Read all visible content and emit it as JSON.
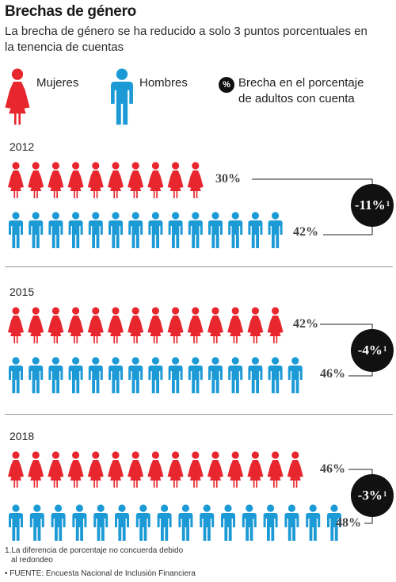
{
  "title": "Brechas de género",
  "subtitle": "La brecha de género se ha reducido a solo 3 puntos porcentuales en la tenencia de cuentas",
  "legend": {
    "women": "Mujeres",
    "men": "Hombres",
    "gap_symbol": "%",
    "gap_label_line1": "Brecha en el porcentaje",
    "gap_label_line2": "de adultos con cuenta"
  },
  "colors": {
    "women": "#e8262d",
    "men": "#1c9ad6",
    "badge": "#111111"
  },
  "icon_names": {
    "women": "woman-icon",
    "men": "man-icon"
  },
  "chart_data": {
    "type": "pictogram",
    "categories": [
      "2012",
      "2015",
      "2018"
    ],
    "series": [
      {
        "name": "Mujeres",
        "values": [
          30,
          42,
          46
        ],
        "labels": [
          "30%",
          "42%",
          "46%"
        ],
        "icon_counts": [
          10,
          14,
          15
        ]
      },
      {
        "name": "Hombres",
        "values": [
          42,
          46,
          48
        ],
        "labels": [
          "42%",
          "46%",
          "48%"
        ],
        "icon_counts": [
          14,
          15,
          16
        ]
      }
    ],
    "gaps": [
      -11,
      -4,
      -3
    ],
    "gap_labels": [
      "-11%",
      "-4%",
      "-3%"
    ],
    "gap_footnote_mark": "1"
  },
  "footnotes": {
    "note1_line1": "1.La diferencia de porcentaje no concuerda debido",
    "note1_line2": "al redondeo",
    "source": "• FUENTE: Encuesta Nacional de Inclusión Financiera"
  }
}
